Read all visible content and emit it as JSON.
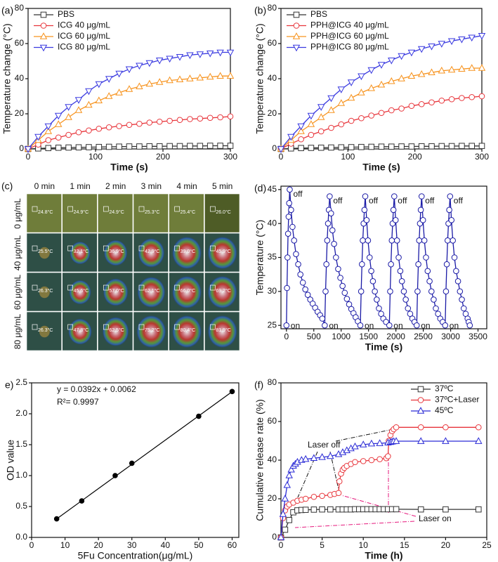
{
  "chart_data": [
    {
      "type": "line",
      "panel_label": "(a)",
      "x_label": "Time (s)",
      "y_label": "Temperature change (°C)",
      "x": [
        0,
        15,
        30,
        45,
        60,
        75,
        90,
        105,
        120,
        135,
        150,
        165,
        180,
        195,
        210,
        225,
        240,
        255,
        270,
        285,
        300
      ],
      "xlim": [
        0,
        300
      ],
      "xticks": [
        0,
        100,
        200,
        300
      ],
      "ylim": [
        0,
        80
      ],
      "yticks": [
        0,
        20,
        40,
        60,
        80
      ],
      "legend": "upper left",
      "series": [
        {
          "name": "PBS",
          "color": "#333333",
          "marker": "square",
          "values": [
            0,
            0.3,
            0.5,
            0.7,
            0.8,
            0.9,
            1,
            1.1,
            1.2,
            1.3,
            1.4,
            1.4,
            1.5,
            1.5,
            1.6,
            1.6,
            1.7,
            1.7,
            1.8,
            1.8,
            1.8
          ]
        },
        {
          "name": "ICG 40 μg/mL",
          "color": "#e8353b",
          "marker": "circle",
          "values": [
            0,
            2.5,
            5,
            6.5,
            8,
            9.5,
            10.5,
            11.5,
            12.3,
            13,
            13.7,
            14.3,
            15,
            15.5,
            16,
            16.5,
            17,
            17.3,
            17.7,
            18,
            18.5
          ]
        },
        {
          "name": "ICG 60 μg/mL",
          "color": "#f7931e",
          "marker": "triangle-up",
          "values": [
            0,
            5,
            10,
            14,
            18,
            22,
            25,
            27.5,
            30,
            32,
            34,
            35.5,
            37,
            38,
            39,
            39.5,
            40,
            40.5,
            41,
            41.5,
            41.5
          ]
        },
        {
          "name": "ICG 80 μg/mL",
          "color": "#3a3ae0",
          "marker": "triangle-down",
          "values": [
            0,
            7,
            13,
            19,
            24,
            28,
            33,
            37,
            40,
            43,
            45.5,
            47.5,
            49,
            50.5,
            51.5,
            52.5,
            53.5,
            54,
            54.5,
            55,
            55
          ]
        }
      ]
    },
    {
      "type": "line",
      "panel_label": "(b)",
      "x_label": "Time (s)",
      "y_label": "Temperature change (°C)",
      "x": [
        0,
        15,
        30,
        45,
        60,
        75,
        90,
        105,
        120,
        135,
        150,
        165,
        180,
        195,
        210,
        225,
        240,
        255,
        270,
        285,
        300
      ],
      "xlim": [
        0,
        300
      ],
      "xticks": [
        0,
        100,
        200,
        300
      ],
      "ylim": [
        0,
        80
      ],
      "yticks": [
        0,
        20,
        40,
        60,
        80
      ],
      "legend": "upper left",
      "series": [
        {
          "name": "PBS",
          "color": "#333333",
          "marker": "square",
          "values": [
            0,
            0.3,
            0.5,
            0.6,
            0.7,
            0.8,
            0.9,
            1,
            1.1,
            1.2,
            1.3,
            1.3,
            1.4,
            1.4,
            1.5,
            1.5,
            1.6,
            1.6,
            1.7,
            1.7,
            1.7
          ]
        },
        {
          "name": "PPH@ICG 40 μg/mL",
          "color": "#e8353b",
          "marker": "circle",
          "values": [
            0,
            3,
            5.5,
            8,
            10,
            12,
            14,
            16,
            17.5,
            19,
            20.5,
            22,
            23,
            24.5,
            25.5,
            26.5,
            27.5,
            28.3,
            29,
            29.5,
            30
          ]
        },
        {
          "name": "PPH@ICG 60 μg/mL",
          "color": "#f7931e",
          "marker": "triangle-up",
          "values": [
            0,
            5,
            10,
            14,
            18,
            22,
            26,
            29,
            32,
            34.5,
            36.5,
            38.5,
            40,
            41.5,
            42.5,
            43.5,
            44.5,
            45,
            45.5,
            46,
            46
          ]
        },
        {
          "name": "PPH@ICG 80 μg/mL",
          "color": "#3a3ae0",
          "marker": "triangle-down",
          "values": [
            0,
            7,
            13,
            19,
            24,
            29,
            34,
            38,
            41.5,
            45,
            48,
            50.5,
            53,
            55,
            57,
            58.5,
            60,
            61.5,
            62.5,
            63.5,
            64.5
          ]
        }
      ]
    },
    {
      "type": "line",
      "panel_label": "(d)",
      "x_label": "Time (s)",
      "y_label": "Temperature (°C)",
      "x": [
        0,
        10,
        20,
        30,
        40,
        50,
        60,
        85,
        110,
        140,
        175,
        215,
        255,
        300,
        345,
        390,
        435,
        480,
        525,
        570,
        615,
        655,
        700,
        715,
        730,
        745,
        760,
        775,
        790,
        815,
        840,
        870,
        905,
        945,
        985,
        1025,
        1065,
        1105,
        1145,
        1185,
        1225,
        1265,
        1305,
        1350,
        1365,
        1380,
        1395,
        1410,
        1425,
        1440,
        1465,
        1490,
        1520,
        1550,
        1580,
        1615,
        1650,
        1690,
        1730,
        1770,
        1820,
        1880,
        1895,
        1910,
        1925,
        1940,
        1955,
        1970,
        1995,
        2020,
        2050,
        2080,
        2110,
        2145,
        2180,
        2220,
        2260,
        2300,
        2340,
        2380,
        2395,
        2410,
        2425,
        2440,
        2455,
        2470,
        2495,
        2520,
        2550,
        2580,
        2615,
        2650,
        2690,
        2730,
        2770,
        2810,
        2855,
        2900,
        2915,
        2930,
        2945,
        2960,
        2975,
        2990,
        3015,
        3040,
        3070,
        3100,
        3135,
        3170,
        3205,
        3240,
        3275,
        3310,
        3330,
        3350
      ],
      "xlim": [
        -100,
        3660
      ],
      "xticks": [
        0,
        500,
        1000,
        1500,
        2000,
        2500,
        3000,
        3500
      ],
      "ylim": [
        24.5,
        45.5
      ],
      "yticks": [
        25,
        30,
        35,
        40,
        45
      ],
      "series": [
        {
          "color": "#1a1aa6",
          "marker": "circle",
          "values": [
            25,
            30.5,
            35,
            38.5,
            41,
            43,
            45,
            42,
            39.5,
            37.5,
            35.5,
            34,
            32.5,
            31.3,
            30.3,
            29.5,
            28.8,
            28.2,
            27.6,
            27,
            26.5,
            26,
            25,
            30,
            34,
            37.5,
            40,
            42,
            44,
            41.5,
            39,
            37,
            35,
            33.3,
            32,
            30.8,
            29.8,
            28.9,
            28.1,
            27.4,
            26.8,
            26.2,
            25.6,
            25,
            30,
            34,
            37.5,
            40,
            42,
            44,
            40.5,
            37.5,
            35,
            33,
            31.5,
            30,
            28.8,
            27.5,
            26.7,
            26,
            25.5,
            25,
            30,
            34,
            37.5,
            40,
            42,
            44,
            40.5,
            37.5,
            35,
            33,
            31.5,
            30,
            28.8,
            27.5,
            26.7,
            26,
            25.5,
            25,
            30,
            34,
            37.5,
            40,
            42,
            44,
            40.5,
            37.5,
            35,
            33,
            31.5,
            30,
            28.8,
            27.5,
            26.7,
            26,
            25.5,
            25,
            30,
            34,
            37.5,
            40,
            42,
            44,
            40.5,
            37.5,
            35,
            33,
            31.5,
            30,
            28.8,
            27.5,
            26.7,
            26,
            25.5,
            25
          ]
        }
      ],
      "on_labels": [
        "on",
        "on",
        "on",
        "on",
        "on",
        "on"
      ],
      "on_color": "#e8141b",
      "off_labels": [
        "off",
        "off",
        "off",
        "off",
        "off",
        "off"
      ],
      "off_color": "#000000"
    },
    {
      "type": "scatter",
      "panel_label": "e)",
      "x_label": "5Fu Concentration(μg/mL)",
      "y_label": "OD value",
      "xlim": [
        0,
        62
      ],
      "xticks": [
        0,
        10,
        20,
        30,
        40,
        50,
        60
      ],
      "ylim": [
        0,
        2.5
      ],
      "yticks": [
        {
          "value": 0,
          "label": "0.0"
        },
        0.5,
        {
          "value": 1,
          "label": "1.0"
        },
        1.5,
        {
          "value": 2,
          "label": "2.0"
        },
        2.5
      ],
      "series": [
        {
          "color": "#000000",
          "marker": "dot",
          "x": [
            7.5,
            15,
            25,
            30,
            50,
            60
          ],
          "values": [
            0.3,
            0.59,
            1.0,
            1.2,
            1.96,
            2.36
          ]
        }
      ],
      "fit": {
        "color": "#000000",
        "x": [
          7.5,
          60
        ],
        "values": [
          0.3002,
          2.3582
        ]
      },
      "annotations": [
        "y = 0.0392x + 0.0062",
        "R²= 0.9997"
      ]
    },
    {
      "type": "line",
      "panel_label": "(f)",
      "x_label": "Time (h)",
      "y_label": "Cumulative release rate (%)",
      "xlim": [
        0,
        25
      ],
      "xticks": [
        0,
        5,
        10,
        15,
        20,
        25
      ],
      "ylim": [
        0,
        80
      ],
      "yticks": [
        0,
        20,
        40,
        60,
        80
      ],
      "legend": "upper right",
      "series": [
        {
          "name": "37ºC",
          "color": "#333333",
          "marker": "square",
          "x": [
            0,
            0.5,
            1,
            1.5,
            2,
            2.5,
            3,
            4,
            5,
            6,
            7,
            7.5,
            8,
            8.5,
            9,
            9.5,
            10,
            10.5,
            11,
            11.5,
            12,
            12.5,
            13,
            13.5,
            14,
            17,
            20,
            24
          ],
          "values": [
            0,
            4,
            9,
            13,
            14,
            14.2,
            14.3,
            14.4,
            14.5,
            14.5,
            14.5,
            14.5,
            14.5,
            14.5,
            14.6,
            14.6,
            14.6,
            14.6,
            14.6,
            14.6,
            14.6,
            14.6,
            14.6,
            14.6,
            14.6,
            14.5,
            14.5,
            14.5
          ]
        },
        {
          "name": "37ºC+Laser",
          "color": "#e8353b",
          "marker": "circle",
          "x": [
            0,
            0.25,
            0.5,
            0.75,
            1,
            1.5,
            2,
            2.5,
            3,
            4,
            5,
            6,
            6.5,
            7,
            7.1,
            7.3,
            7.5,
            7.7,
            8,
            8.5,
            9,
            10,
            11,
            12,
            12.8,
            13,
            13.1,
            13.3,
            13.5,
            13.7,
            14,
            17,
            20,
            24
          ],
          "values": [
            0,
            10,
            14,
            16,
            17,
            18,
            19,
            19.5,
            20,
            21,
            21.5,
            22,
            22.5,
            23,
            29,
            33,
            35,
            36,
            37,
            38,
            39,
            39.5,
            40,
            40.5,
            41,
            42,
            50,
            53,
            55,
            56,
            57,
            57,
            57,
            57
          ]
        },
        {
          "name": "45ºC",
          "color": "#2b2bd6",
          "marker": "triangle-up",
          "x": [
            0,
            0.25,
            0.5,
            0.75,
            1,
            1.25,
            1.5,
            1.75,
            2,
            2.5,
            3,
            4,
            5,
            6,
            7,
            7.5,
            8,
            8.5,
            9,
            10,
            11,
            12,
            13,
            13.3,
            13.5,
            13.7,
            14,
            17,
            20,
            24
          ],
          "values": [
            0,
            12,
            20,
            27,
            32,
            35,
            37,
            38,
            39,
            40,
            40.5,
            41,
            41.5,
            42,
            43,
            44,
            45,
            46,
            47,
            48,
            48.5,
            48.7,
            49,
            49.3,
            49.5,
            49.7,
            49.8,
            49.8,
            49.8,
            49.8
          ]
        }
      ],
      "annotations": [
        {
          "text": "Laser off",
          "color": "#000000"
        },
        {
          "text": "Laser on",
          "color": "#e6197d"
        }
      ]
    }
  ],
  "thermal_image": {
    "panel_label": "(c)",
    "columns": [
      "0 min",
      "1 min",
      "2 min",
      "3 min",
      "4 min",
      "5 min"
    ],
    "rows": [
      {
        "label": "0 μg/mL",
        "readings": [
          "24.8°C",
          "24.9°C",
          "24.9°C",
          "25.3°C",
          "25.4°C",
          "26.0°C"
        ]
      },
      {
        "label": "40 μg/mL",
        "readings": [
          "25.5°C",
          "32.1°C",
          "36.9°C",
          "42.9°C",
          "39.0°C",
          "45.9°C"
        ]
      },
      {
        "label": "60 μg/mL",
        "readings": [
          "26.3°C",
          "45.6°C",
          "57.0°C",
          "62.1°C",
          "66.0°C",
          "69.2°C"
        ]
      },
      {
        "label": "80 μg/mL",
        "readings": [
          "26.3°C",
          "47.8°C",
          "62.5°C",
          "75.2°C",
          "80.4°C",
          "81.9°C"
        ]
      }
    ]
  }
}
